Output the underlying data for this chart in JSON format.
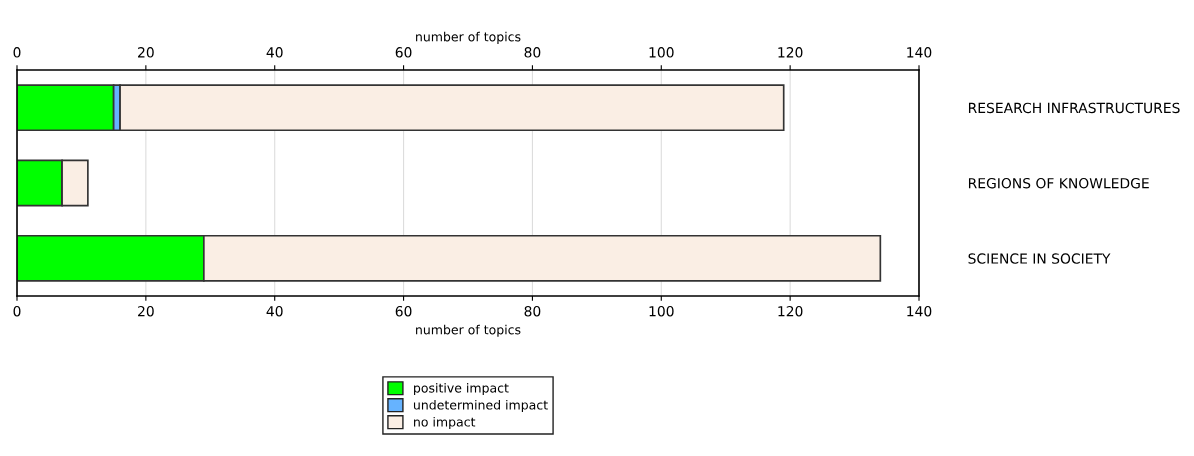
{
  "chart_data": {
    "type": "bar",
    "orientation": "horizontal",
    "stacked": true,
    "categories": [
      "RESEARCH INFRASTRUCTURES",
      "REGIONS OF KNOWLEDGE",
      "SCIENCE IN SOCIETY"
    ],
    "series": [
      {
        "name": "positive impact",
        "color": "#00ff00",
        "values": [
          15,
          7,
          29
        ]
      },
      {
        "name": "undetermined impact",
        "color": "#66b3ff",
        "values": [
          1,
          0,
          0
        ]
      },
      {
        "name": "no impact",
        "color": "#faeee4",
        "values": [
          103,
          4,
          105
        ]
      }
    ],
    "xlabel": "number of topics",
    "x2label": "number of topics",
    "xlim": [
      0,
      140
    ],
    "xticks": [
      0,
      20,
      40,
      60,
      80,
      100,
      120,
      140
    ],
    "x2lim": [
      0,
      140
    ],
    "x2ticks": [
      0,
      20,
      40,
      60,
      80,
      100,
      120,
      140
    ],
    "grid": "x",
    "legend": "bottom"
  }
}
